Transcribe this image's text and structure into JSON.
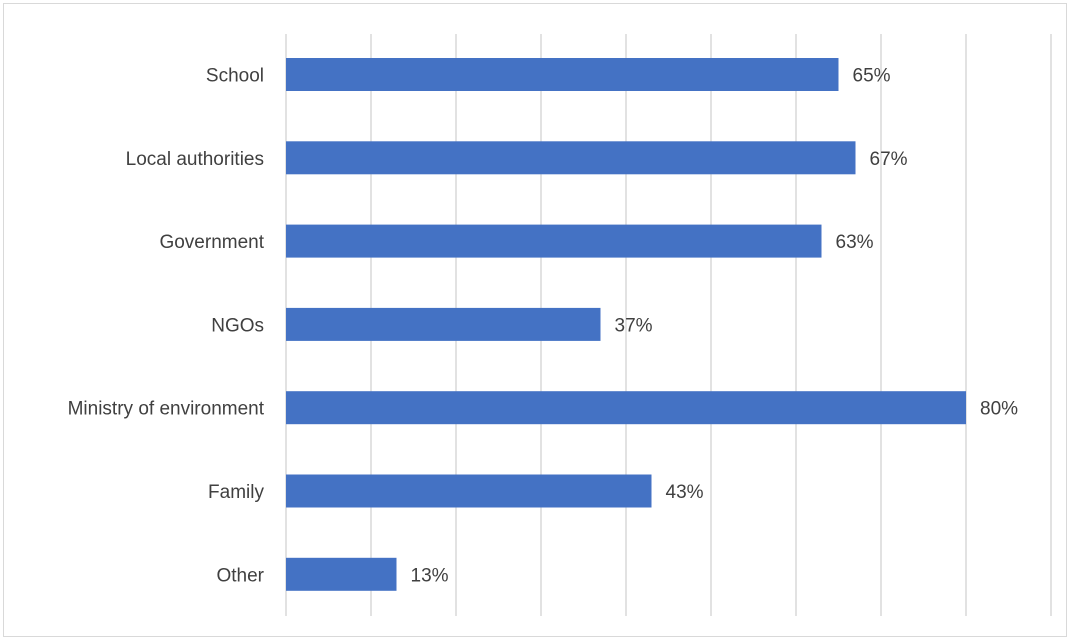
{
  "chart_data": {
    "type": "bar",
    "orientation": "horizontal",
    "categories": [
      "School",
      "Local authorities",
      "Government",
      "NGOs",
      "Ministry of environment",
      "Family",
      "Other"
    ],
    "values": [
      65,
      67,
      63,
      37,
      80,
      43,
      13
    ],
    "value_labels": [
      "65%",
      "67%",
      "63%",
      "37%",
      "80%",
      "43%",
      "13%"
    ],
    "title": "",
    "xlabel": "",
    "ylabel": "",
    "xlim": [
      0,
      90
    ],
    "grid": "vertical gridlines",
    "legend": "none",
    "bar_color": "#4472c4",
    "grid_color": "#d9d9d9"
  }
}
